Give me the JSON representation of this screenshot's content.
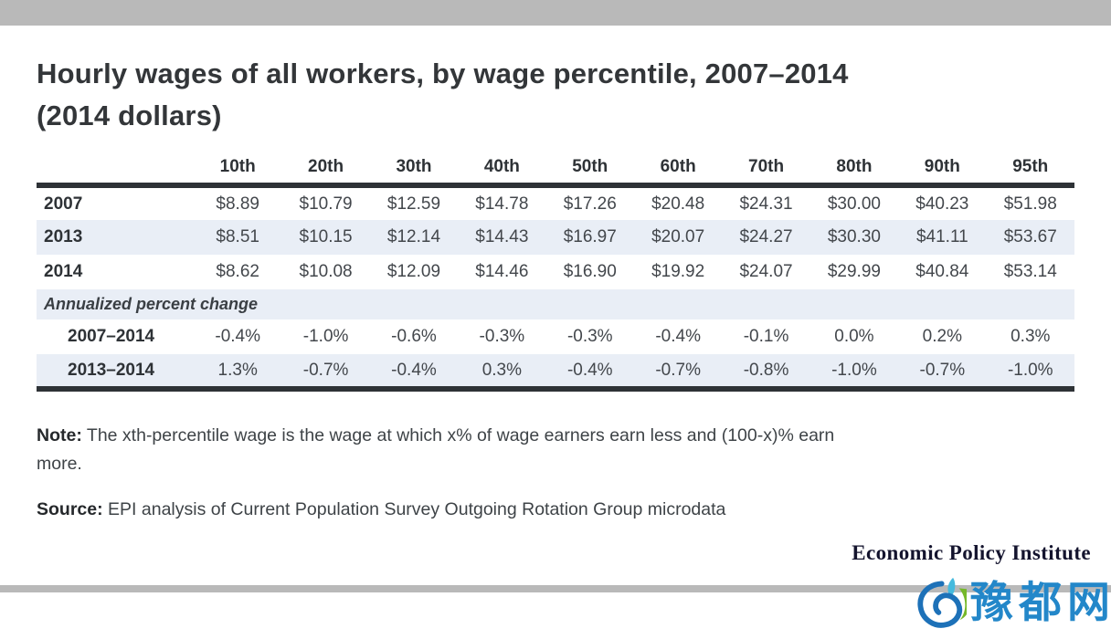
{
  "header": {
    "title_line1": "Hourly wages of all workers, by wage percentile, 2007–2014",
    "title_line2": "(2014 dollars)"
  },
  "chart_data": {
    "type": "table",
    "title": "Hourly wages of all workers, by wage percentile, 2007–2014 (2014 dollars)",
    "columns": [
      "10th",
      "20th",
      "30th",
      "40th",
      "50th",
      "60th",
      "70th",
      "80th",
      "90th",
      "95th"
    ],
    "rows": [
      {
        "label": "2007",
        "values": [
          "$8.89",
          "$10.79",
          "$12.59",
          "$14.78",
          "$17.26",
          "$20.48",
          "$24.31",
          "$30.00",
          "$40.23",
          "$51.98"
        ]
      },
      {
        "label": "2013",
        "values": [
          "$8.51",
          "$10.15",
          "$12.14",
          "$14.43",
          "$16.97",
          "$20.07",
          "$24.27",
          "$30.30",
          "$41.11",
          "$53.67"
        ]
      },
      {
        "label": "2014",
        "values": [
          "$8.62",
          "$10.08",
          "$12.09",
          "$14.46",
          "$16.90",
          "$19.92",
          "$24.07",
          "$29.99",
          "$40.84",
          "$53.14"
        ]
      },
      {
        "section_label": "Annualized percent change"
      },
      {
        "label": "2007–2014",
        "indent": true,
        "values": [
          "-0.4%",
          "-1.0%",
          "-0.6%",
          "-0.3%",
          "-0.3%",
          "-0.4%",
          "-0.1%",
          "0.0%",
          "0.2%",
          "0.3%"
        ]
      },
      {
        "label": "2013–2014",
        "indent": true,
        "values": [
          "1.3%",
          "-0.7%",
          "-0.4%",
          "0.3%",
          "-0.4%",
          "-0.7%",
          "-0.8%",
          "-1.0%",
          "-0.7%",
          "-1.0%"
        ]
      }
    ],
    "layout_hints": {
      "zebra_striped": true,
      "first_column": "year / period labels"
    }
  },
  "note": {
    "label": "Note:",
    "text": "The xth-percentile wage is the wage at which x% of wage earners earn less and (100-x)% earn\nmore."
  },
  "source": {
    "label": "Source:",
    "text": "EPI analysis of Current Population Survey Outgoing Rotation Group microdata"
  },
  "branding": {
    "wordmark": "Economic Policy Institute"
  },
  "watermark": {
    "text": "豫都网"
  },
  "colors": {
    "top_bar_gray": "#b9b9b9",
    "row_stripe_blue": "#e9eef6",
    "table_rule_dark": "#2e3236",
    "watermark_blue": "#2387c9",
    "watermark_light_blue": "#45bade",
    "watermark_green": "#76b82a"
  }
}
